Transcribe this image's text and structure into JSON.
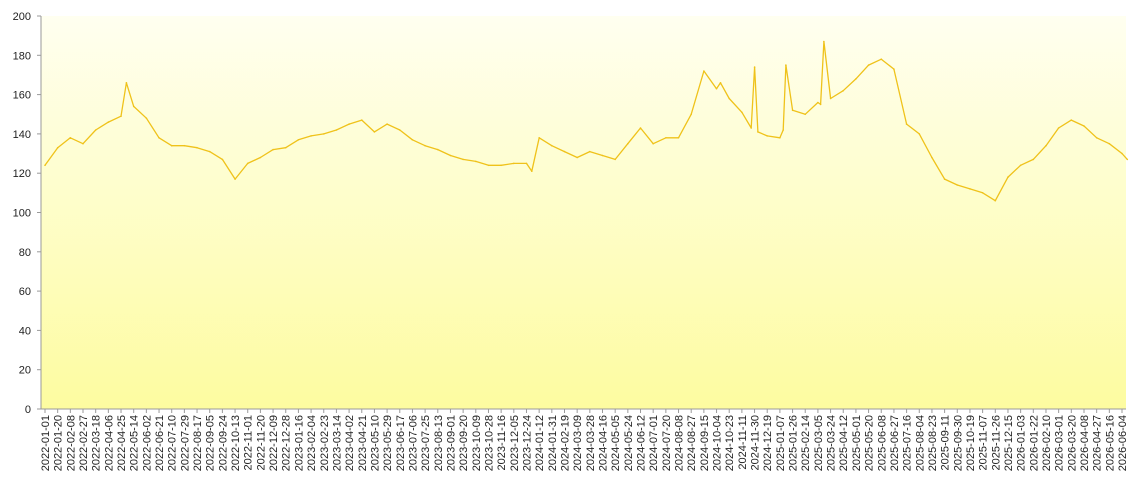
{
  "chart_data": {
    "type": "line",
    "title": "",
    "xlabel": "",
    "ylabel": "",
    "ylim": [
      0,
      200
    ],
    "yticks": [
      0,
      20,
      40,
      60,
      80,
      100,
      120,
      140,
      160,
      180,
      200
    ],
    "grid": false,
    "legend": "none",
    "colors": {
      "line": "#efc21a",
      "background_top": "#fffff0",
      "background_bottom": "#fdfca0",
      "axis": "#9a9a9a"
    },
    "xticks": [
      "2022-01-01",
      "2022-01-20",
      "2022-02-08",
      "2022-02-27",
      "2022-03-18",
      "2022-04-06",
      "2022-04-25",
      "2022-05-14",
      "2022-06-02",
      "2022-06-21",
      "2022-07-10",
      "2022-07-29",
      "2022-08-17",
      "2022-09-05",
      "2022-09-24",
      "2022-10-13",
      "2022-11-01",
      "2022-11-20",
      "2022-12-09",
      "2022-12-28",
      "2023-01-16",
      "2023-02-04",
      "2023-02-23",
      "2023-03-14",
      "2023-04-02",
      "2023-04-21",
      "2023-05-10",
      "2023-05-29",
      "2023-06-17",
      "2023-07-06",
      "2023-07-25",
      "2023-08-13",
      "2023-09-01",
      "2023-09-20",
      "2023-10-09",
      "2023-10-28",
      "2023-11-16",
      "2023-12-05",
      "2023-12-24",
      "2024-01-12",
      "2024-01-31",
      "2024-02-19",
      "2024-03-09",
      "2024-03-28",
      "2024-04-16",
      "2024-05-05",
      "2024-05-24",
      "2024-06-12",
      "2024-07-01",
      "2024-07-20",
      "2024-08-08",
      "2024-08-27",
      "2024-09-15",
      "2024-10-04",
      "2024-10-23",
      "2024-11-11",
      "2024-11-30",
      "2024-12-19",
      "2025-01-07",
      "2025-01-26",
      "2025-02-14",
      "2025-03-05",
      "2025-03-24",
      "2025-04-12",
      "2025-05-01",
      "2025-05-20",
      "2025-06-08",
      "2025-06-27",
      "2025-07-16",
      "2025-08-04",
      "2025-08-23",
      "2025-09-11",
      "2025-09-30",
      "2025-10-19",
      "2025-11-07",
      "2025-11-26",
      "2025-12-15",
      "2026-01-03",
      "2026-01-22",
      "2026-02-10",
      "2026-03-01",
      "2026-03-20",
      "2026-04-08",
      "2026-04-27",
      "2026-05-16",
      "2026-06-04"
    ],
    "series": [
      {
        "x": [
          "2022-01-01",
          "2022-01-20",
          "2022-02-08",
          "2022-02-27",
          "2022-03-18",
          "2022-04-06",
          "2022-04-25",
          "2022-05-03",
          "2022-05-14",
          "2022-06-02",
          "2022-06-21",
          "2022-07-10",
          "2022-07-29",
          "2022-08-17",
          "2022-09-05",
          "2022-09-24",
          "2022-10-13",
          "2022-11-01",
          "2022-11-20",
          "2022-12-09",
          "2022-12-28",
          "2023-01-16",
          "2023-02-04",
          "2023-02-23",
          "2023-03-14",
          "2023-04-02",
          "2023-04-21",
          "2023-05-10",
          "2023-05-29",
          "2023-06-17",
          "2023-07-06",
          "2023-07-25",
          "2023-08-13",
          "2023-09-01",
          "2023-09-20",
          "2023-10-09",
          "2023-10-28",
          "2023-11-16",
          "2023-12-05",
          "2023-12-24",
          "2024-01-01",
          "2024-01-12",
          "2024-01-31",
          "2024-02-19",
          "2024-03-09",
          "2024-03-28",
          "2024-04-16",
          "2024-05-05",
          "2024-05-24",
          "2024-06-12",
          "2024-07-01",
          "2024-07-20",
          "2024-08-08",
          "2024-08-27",
          "2024-09-15",
          "2024-10-04",
          "2024-10-10",
          "2024-10-23",
          "2024-11-11",
          "2024-11-25",
          "2024-11-30",
          "2024-12-05",
          "2024-12-19",
          "2025-01-07",
          "2025-01-12",
          "2025-01-16",
          "2025-01-26",
          "2025-02-14",
          "2025-03-05",
          "2025-03-09",
          "2025-03-14",
          "2025-03-24",
          "2025-04-12",
          "2025-05-01",
          "2025-05-20",
          "2025-06-08",
          "2025-06-27",
          "2025-07-16",
          "2025-08-04",
          "2025-08-23",
          "2025-09-11",
          "2025-09-30",
          "2025-10-19",
          "2025-11-07",
          "2025-11-26",
          "2025-12-15",
          "2026-01-03",
          "2026-01-22",
          "2026-02-10",
          "2026-03-01",
          "2026-03-20",
          "2026-04-08",
          "2026-04-27",
          "2026-05-16",
          "2026-06-04",
          "2026-06-12"
        ],
        "values": [
          124,
          133,
          138,
          135,
          142,
          146,
          149,
          166,
          154,
          148,
          138,
          134,
          134,
          133,
          131,
          127,
          117,
          125,
          128,
          132,
          133,
          137,
          139,
          140,
          142,
          145,
          147,
          141,
          145,
          142,
          137,
          134,
          132,
          129,
          127,
          126,
          124,
          124,
          125,
          125,
          121,
          138,
          134,
          131,
          128,
          131,
          129,
          127,
          135,
          143,
          135,
          138,
          138,
          150,
          172,
          163,
          166,
          158,
          151,
          143,
          174,
          141,
          139,
          138,
          142,
          175,
          152,
          150,
          156,
          155,
          187,
          158,
          162,
          168,
          175,
          178,
          173,
          145,
          140,
          128,
          117,
          114,
          112,
          110,
          106,
          118,
          124,
          127,
          134,
          143,
          147,
          144,
          138,
          135,
          130,
          127
        ]
      }
    ]
  }
}
